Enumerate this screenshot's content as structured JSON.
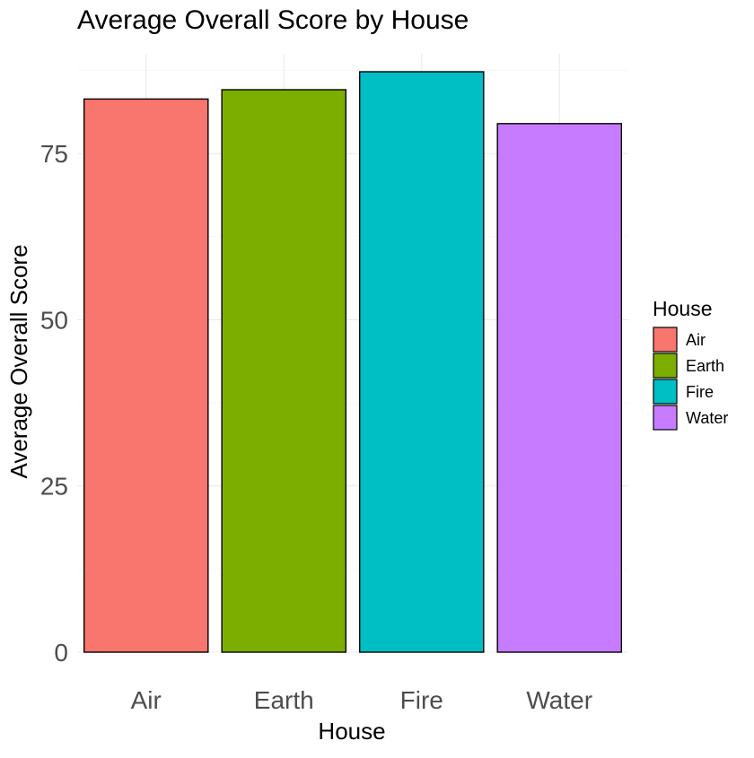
{
  "chart_data": {
    "type": "bar",
    "title": "Average Overall Score by House",
    "xlabel": "House",
    "ylabel": "Average Overall Score",
    "categories": [
      "Air",
      "Earth",
      "Fire",
      "Water"
    ],
    "values": [
      83.2,
      84.6,
      87.3,
      79.5
    ],
    "colors": [
      "#F8766D",
      "#7CAE00",
      "#00BFC4",
      "#C77CFF"
    ],
    "ylim": [
      0,
      90
    ],
    "yticks": [
      0,
      25,
      50,
      75
    ],
    "grid": true,
    "legend": {
      "title": "House",
      "position": "right",
      "items": [
        "Air",
        "Earth",
        "Fire",
        "Water"
      ]
    }
  }
}
